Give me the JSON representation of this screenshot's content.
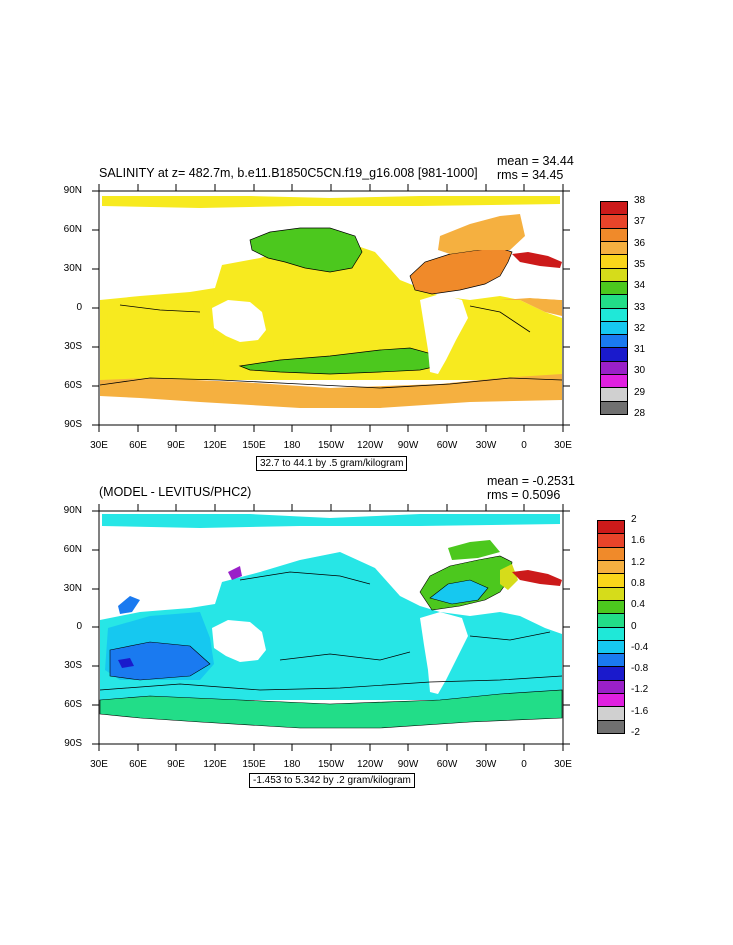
{
  "panels": [
    {
      "title": "SALINITY at z= 482.7m, b.e11.B1850C5CN.f19_g16.008 [981-1000]",
      "mean": "mean = 34.44",
      "rms": "rms = 34.45",
      "contour_info": "32.7 to 44.1 by .5 gram/kilogram",
      "colorbar_labels": [
        "38",
        "37",
        "36",
        "35",
        "34",
        "33",
        "32",
        "31",
        "30",
        "29",
        "28"
      ],
      "colorbar_colors": [
        "#cc1a1a",
        "#e8442a",
        "#f08a2a",
        "#f5b040",
        "#fad61a",
        "#d6dc1a",
        "#4cc81e",
        "#22dd88",
        "#1fe8d8",
        "#16c8f0",
        "#1a7af0",
        "#1a1acc",
        "#9a20c8",
        "#e020e0",
        "#d0d0d0",
        "#707070"
      ],
      "ocean_color": "#f7ea1f"
    },
    {
      "title": "(MODEL - LEVITUS/PHC2)",
      "mean": "mean = -0.2531",
      "rms": "rms = 0.5096",
      "contour_info": "-1.453 to 5.342 by .2 gram/kilogram",
      "colorbar_labels": [
        "2",
        "1.6",
        "1.2",
        "0.8",
        "0.4",
        "0",
        "-0.4",
        "-0.8",
        "-1.2",
        "-1.6",
        "-2"
      ],
      "colorbar_colors": [
        "#cc1a1a",
        "#e8442a",
        "#f08a2a",
        "#f5b040",
        "#fad61a",
        "#d6dc1a",
        "#4cc81e",
        "#22dd88",
        "#1fe8d8",
        "#16c8f0",
        "#1a7af0",
        "#1a1acc",
        "#9a20c8",
        "#e020e0",
        "#d0d0d0",
        "#707070"
      ],
      "ocean_color": "#27e6e6"
    }
  ],
  "axes": {
    "lat_labels": [
      "90N",
      "60N",
      "30N",
      "0",
      "30S",
      "60S",
      "90S"
    ],
    "lon_labels": [
      "30E",
      "60E",
      "90E",
      "120E",
      "150E",
      "180",
      "150W",
      "120W",
      "90W",
      "60W",
      "30W",
      "0",
      "30E"
    ]
  }
}
